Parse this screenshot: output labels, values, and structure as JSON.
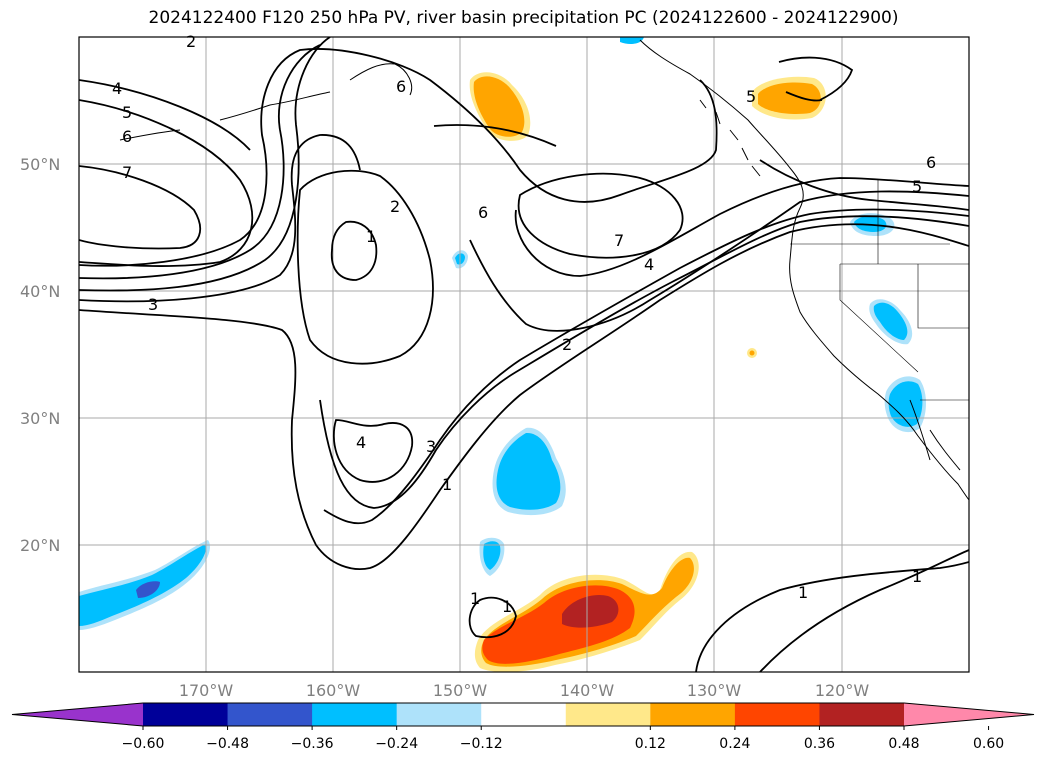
{
  "title": "2024122400 F120 250 hPa PV, river basin precipitation PC (2024122600 - 2024122900)",
  "map": {
    "lon_range": [
      -180,
      -110
    ],
    "lat_range": [
      10,
      60
    ],
    "lat_labels": [
      "50°N",
      "40°N",
      "30°N",
      "20°N"
    ],
    "lon_labels": [
      "170°W",
      "160°W",
      "150°W",
      "140°W",
      "130°W",
      "120°W"
    ],
    "gridlines": true
  },
  "contour_labels": [
    "2",
    "4",
    "5",
    "6",
    "7",
    "6",
    "3",
    "1",
    "2",
    "6",
    "7",
    "4",
    "2",
    "1",
    "3",
    "4",
    "1",
    "1",
    "1",
    "1",
    "5",
    "6",
    "5"
  ],
  "colorbar": {
    "ticks": [
      "−0.60",
      "−0.48",
      "−0.36",
      "−0.24",
      "−0.12",
      "0.12",
      "0.24",
      "0.36",
      "0.48",
      "0.60"
    ],
    "colors": [
      "#9933cc",
      "#000099",
      "#3355cc",
      "#00bfff",
      "#aee2fa",
      "#ffffff",
      "#ffe88a",
      "#ffa500",
      "#ff4500",
      "#b22222",
      "#ff88aa"
    ],
    "extend": "both"
  }
}
